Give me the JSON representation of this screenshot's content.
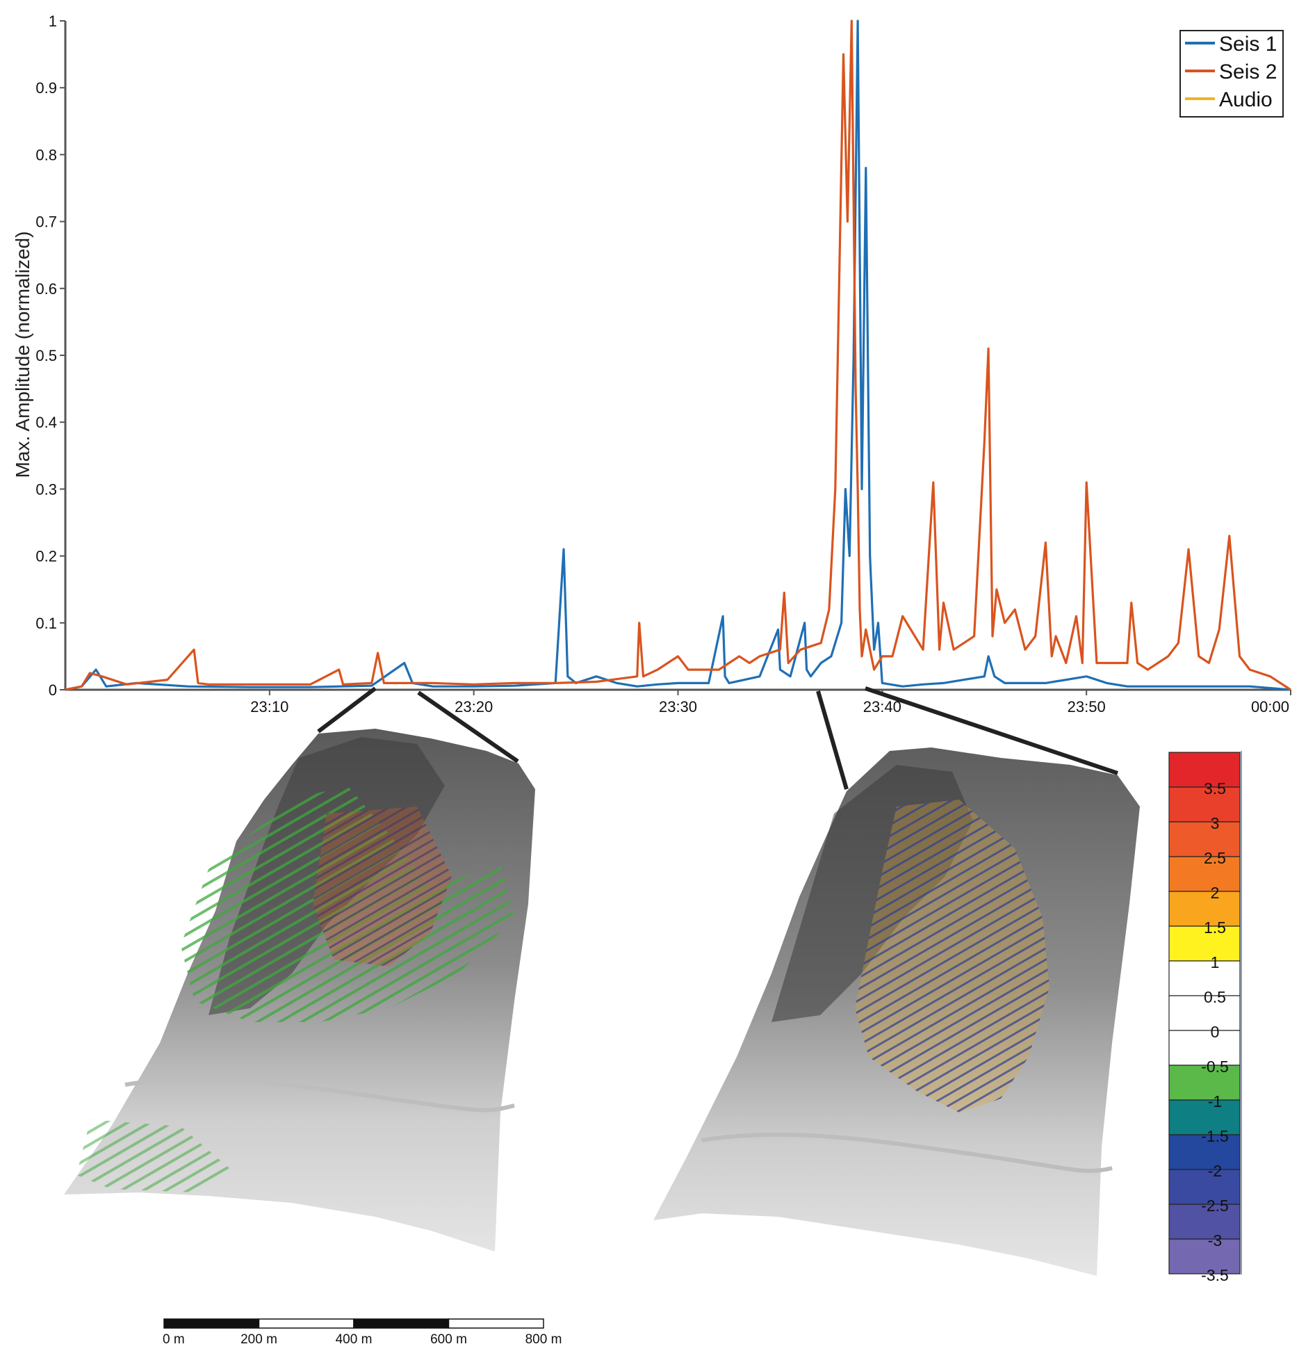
{
  "chart_data": {
    "type": "line",
    "ylabel": "Max. Amplitude (normalized)",
    "xlabel": "",
    "ylim": [
      0,
      1
    ],
    "yticks": [
      "0",
      "0.1",
      "0.2",
      "0.3",
      "0.4",
      "0.5",
      "0.6",
      "0.7",
      "0.8",
      "0.9",
      "1"
    ],
    "xlim": [
      "23:00",
      "00:00"
    ],
    "xticks": [
      {
        "minute": 10,
        "label": "23:10"
      },
      {
        "minute": 20,
        "label": "23:20"
      },
      {
        "minute": 30,
        "label": "23:30"
      },
      {
        "minute": 40,
        "label": "23:40"
      },
      {
        "minute": 50,
        "label": "23:50"
      },
      {
        "minute": 60,
        "label": "00:00"
      }
    ],
    "legend": {
      "placement": "top-right",
      "entries": [
        "Seis 1",
        "Seis 2",
        "Audio"
      ]
    },
    "series": [
      {
        "name": "Seis 1",
        "color": "#1f6fb5",
        "x": [
          0,
          0.8,
          1.5,
          2.0,
          3.5,
          6,
          9,
          12,
          15,
          16.6,
          17,
          18,
          20,
          22,
          24,
          24.4,
          24.6,
          25,
          26,
          27,
          28,
          29,
          30,
          31.5,
          32.2,
          32.3,
          32.5,
          34,
          34.9,
          35,
          35.5,
          36.2,
          36.3,
          36.5,
          37,
          37.5,
          38,
          38.2,
          38.4,
          38.6,
          38.8,
          39,
          39.2,
          39.4,
          39.6,
          39.8,
          40,
          41,
          42,
          43,
          44,
          45,
          45.2,
          45.5,
          46,
          48,
          50,
          51,
          52,
          55,
          58,
          60
        ],
        "y": [
          0,
          0.005,
          0.03,
          0.005,
          0.01,
          0.005,
          0.004,
          0.004,
          0.006,
          0.04,
          0.01,
          0.005,
          0.005,
          0.006,
          0.01,
          0.21,
          0.02,
          0.01,
          0.02,
          0.01,
          0.005,
          0.008,
          0.01,
          0.01,
          0.11,
          0.02,
          0.01,
          0.02,
          0.09,
          0.03,
          0.02,
          0.1,
          0.03,
          0.02,
          0.04,
          0.05,
          0.1,
          0.3,
          0.2,
          0.5,
          1.0,
          0.3,
          0.78,
          0.2,
          0.06,
          0.1,
          0.01,
          0.005,
          0.008,
          0.01,
          0.015,
          0.02,
          0.05,
          0.02,
          0.01,
          0.01,
          0.02,
          0.01,
          0.005,
          0.005,
          0.005,
          0
        ]
      },
      {
        "name": "Seis 2",
        "color": "#d9541e",
        "x": [
          0,
          0.8,
          1.2,
          1.8,
          3,
          5,
          6.3,
          6.5,
          7,
          9,
          12,
          13.4,
          13.6,
          15,
          15.3,
          15.6,
          16,
          18,
          20,
          22,
          24,
          26,
          28,
          28.1,
          28.3,
          29,
          30,
          30.5,
          31,
          32,
          33,
          33.5,
          34,
          35,
          35.2,
          35.4,
          36,
          37,
          37.4,
          37.7,
          37.9,
          38.1,
          38.3,
          38.5,
          38.7,
          38.8,
          38.9,
          39.0,
          39.2,
          39.4,
          39.6,
          40,
          40.5,
          41,
          42,
          42.5,
          42.8,
          43,
          43.5,
          44,
          44.5,
          45,
          45.2,
          45.4,
          45.6,
          46,
          46.5,
          47,
          47.5,
          48,
          48.3,
          48.5,
          49,
          49.5,
          49.8,
          50,
          50.5,
          51,
          52,
          52.2,
          52.5,
          53,
          54,
          54.5,
          55,
          55.5,
          56,
          56.5,
          57,
          57.5,
          58,
          59,
          60
        ],
        "y": [
          0,
          0.005,
          0.025,
          0.02,
          0.008,
          0.015,
          0.06,
          0.01,
          0.008,
          0.008,
          0.008,
          0.03,
          0.008,
          0.01,
          0.055,
          0.01,
          0.01,
          0.01,
          0.008,
          0.01,
          0.01,
          0.012,
          0.02,
          0.1,
          0.02,
          0.03,
          0.05,
          0.03,
          0.03,
          0.03,
          0.05,
          0.04,
          0.05,
          0.06,
          0.145,
          0.04,
          0.06,
          0.07,
          0.12,
          0.3,
          0.62,
          0.95,
          0.7,
          1.0,
          0.45,
          0.3,
          0.12,
          0.05,
          0.09,
          0.06,
          0.03,
          0.05,
          0.05,
          0.11,
          0.06,
          0.31,
          0.06,
          0.13,
          0.06,
          0.07,
          0.08,
          0.37,
          0.51,
          0.08,
          0.15,
          0.1,
          0.12,
          0.06,
          0.08,
          0.22,
          0.05,
          0.08,
          0.04,
          0.11,
          0.04,
          0.31,
          0.04,
          0.04,
          0.04,
          0.13,
          0.04,
          0.03,
          0.05,
          0.07,
          0.21,
          0.05,
          0.04,
          0.09,
          0.23,
          0.05,
          0.03,
          0.02,
          0
        ]
      },
      {
        "name": "Audio",
        "color": "#f0b323",
        "x": [],
        "y": []
      }
    ],
    "colorbar": {
      "labels": [
        "3.5",
        "3",
        "2.5",
        "2",
        "1.5",
        "1",
        "0.5",
        "0",
        "-0.5",
        "-1",
        "-1.5",
        "-2",
        "-2.5",
        "-3",
        "-3.5"
      ],
      "colors": [
        "#e3262a",
        "#e8402b",
        "#ee5a29",
        "#f37a23",
        "#f9a51d",
        "#fff21e",
        "#ffffff",
        "#ffffff",
        "#ffffff",
        "#5bb94a",
        "#0e7f82",
        "#24489e",
        "#3a4aa0",
        "#5152a4",
        "#7468b0"
      ]
    },
    "scale_bar": {
      "labels": [
        "0 m",
        "200 m",
        "400 m",
        "600 m",
        "800 m"
      ]
    }
  }
}
